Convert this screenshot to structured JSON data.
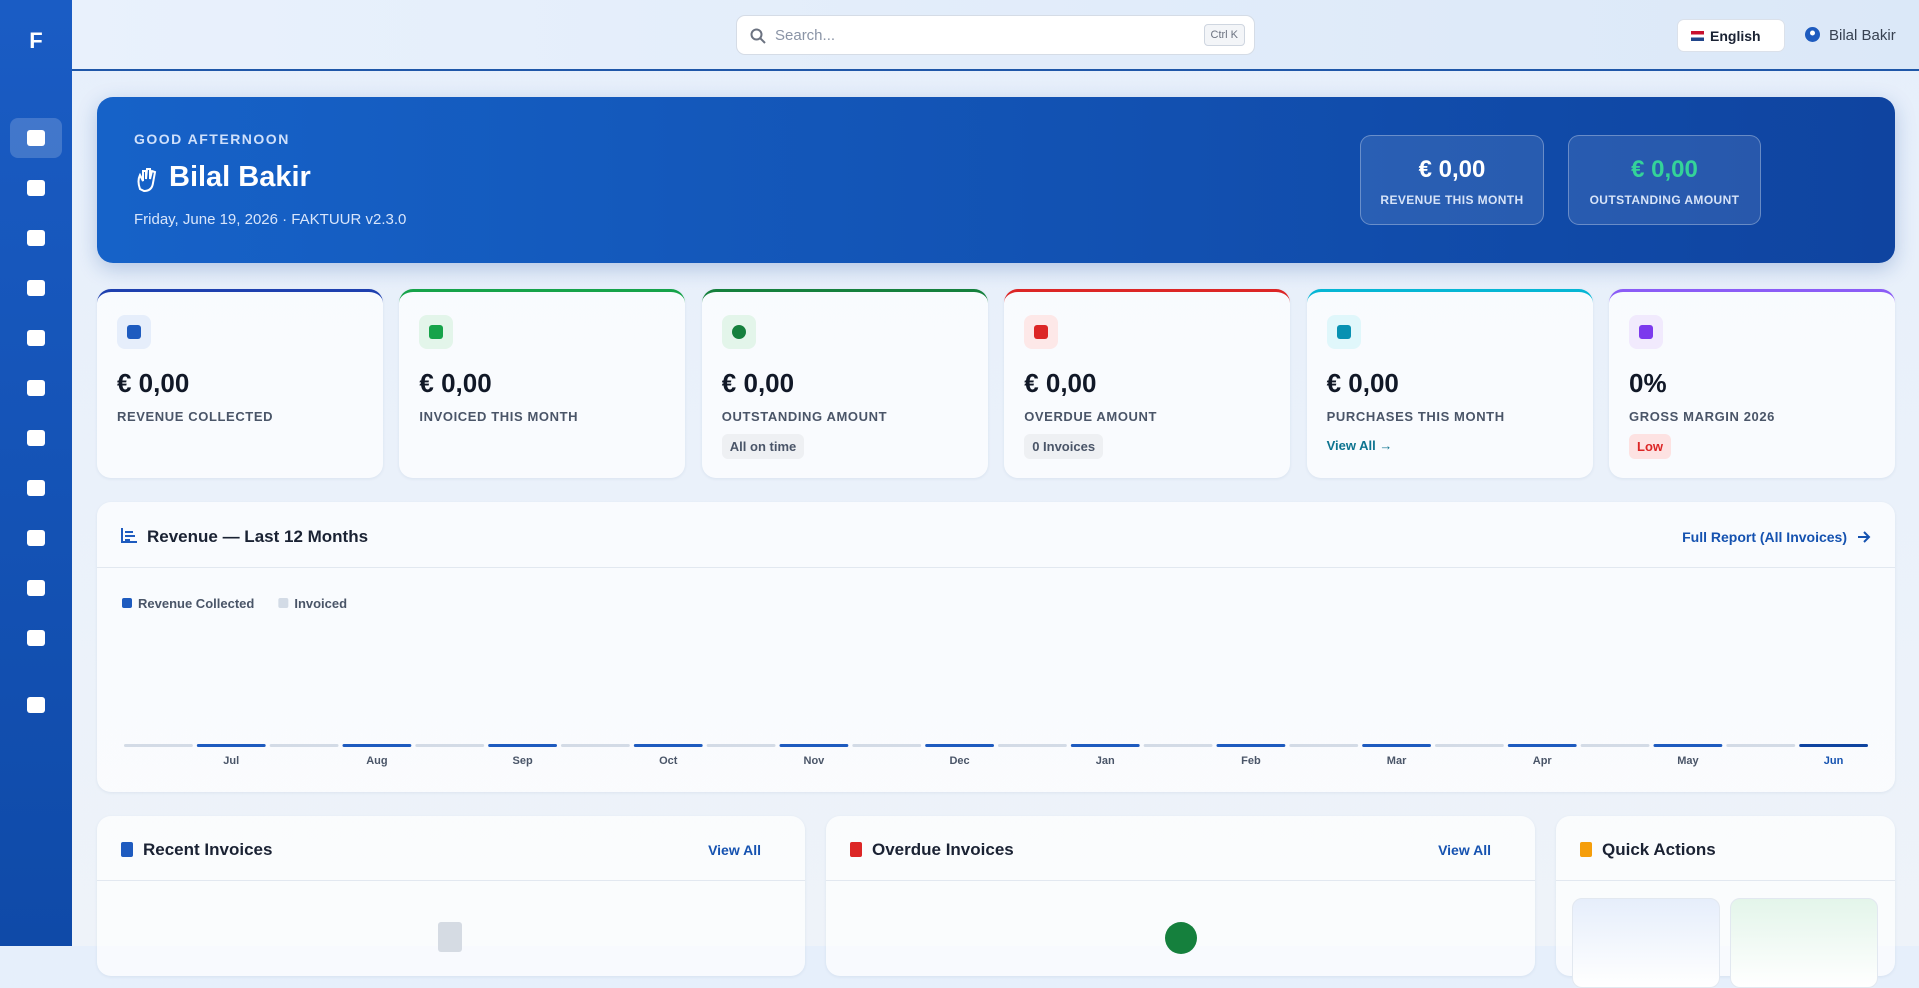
{
  "brand": "F",
  "search": {
    "placeholder": "Search...",
    "shortcut": "Ctrl K"
  },
  "language": "English",
  "user": "Bilal Bakir",
  "hero": {
    "greeting": "GOOD AFTERNOON",
    "name": "Bilal Bakir",
    "meta": "Friday, June 19, 2026 · FAKTUUR v2.3.0",
    "stats": [
      {
        "value": "€ 0,00",
        "label": "REVENUE THIS MONTH"
      },
      {
        "value": "€ 0,00",
        "label": "OUTSTANDING AMOUNT"
      }
    ]
  },
  "cards": [
    {
      "value": "€ 0,00",
      "label": "REVENUE COLLECTED"
    },
    {
      "value": "€ 0,00",
      "label": "INVOICED THIS MONTH"
    },
    {
      "value": "€ 0,00",
      "label": "OUTSTANDING AMOUNT",
      "badge": "All on time"
    },
    {
      "value": "€ 0,00",
      "label": "OVERDUE AMOUNT",
      "badge": "0 Invoices"
    },
    {
      "value": "€ 0,00",
      "label": "PURCHASES THIS MONTH",
      "link": "View All →"
    },
    {
      "value": "0%",
      "label": "GROSS MARGIN 2026",
      "badge": "Low"
    }
  ],
  "chart_data": {
    "type": "bar",
    "title": "Revenue — Last 12 Months",
    "link": "Full Report (All Invoices)",
    "categories": [
      "Jul",
      "Aug",
      "Sep",
      "Oct",
      "Nov",
      "Dec",
      "Jan",
      "Feb",
      "Mar",
      "Apr",
      "May",
      "Jun"
    ],
    "series": [
      {
        "name": "Revenue Collected",
        "color": "#1e5bbf",
        "values": [
          0,
          0,
          0,
          0,
          0,
          0,
          0,
          0,
          0,
          0,
          0,
          0
        ]
      },
      {
        "name": "Invoiced",
        "color": "#d3dbe6",
        "values": [
          0,
          0,
          0,
          0,
          0,
          0,
          0,
          0,
          0,
          0,
          0,
          0
        ]
      }
    ]
  },
  "panels": [
    {
      "title": "Recent Invoices",
      "link": "View All"
    },
    {
      "title": "Overdue Invoices",
      "link": "View All"
    },
    {
      "title": "Quick Actions"
    }
  ]
}
